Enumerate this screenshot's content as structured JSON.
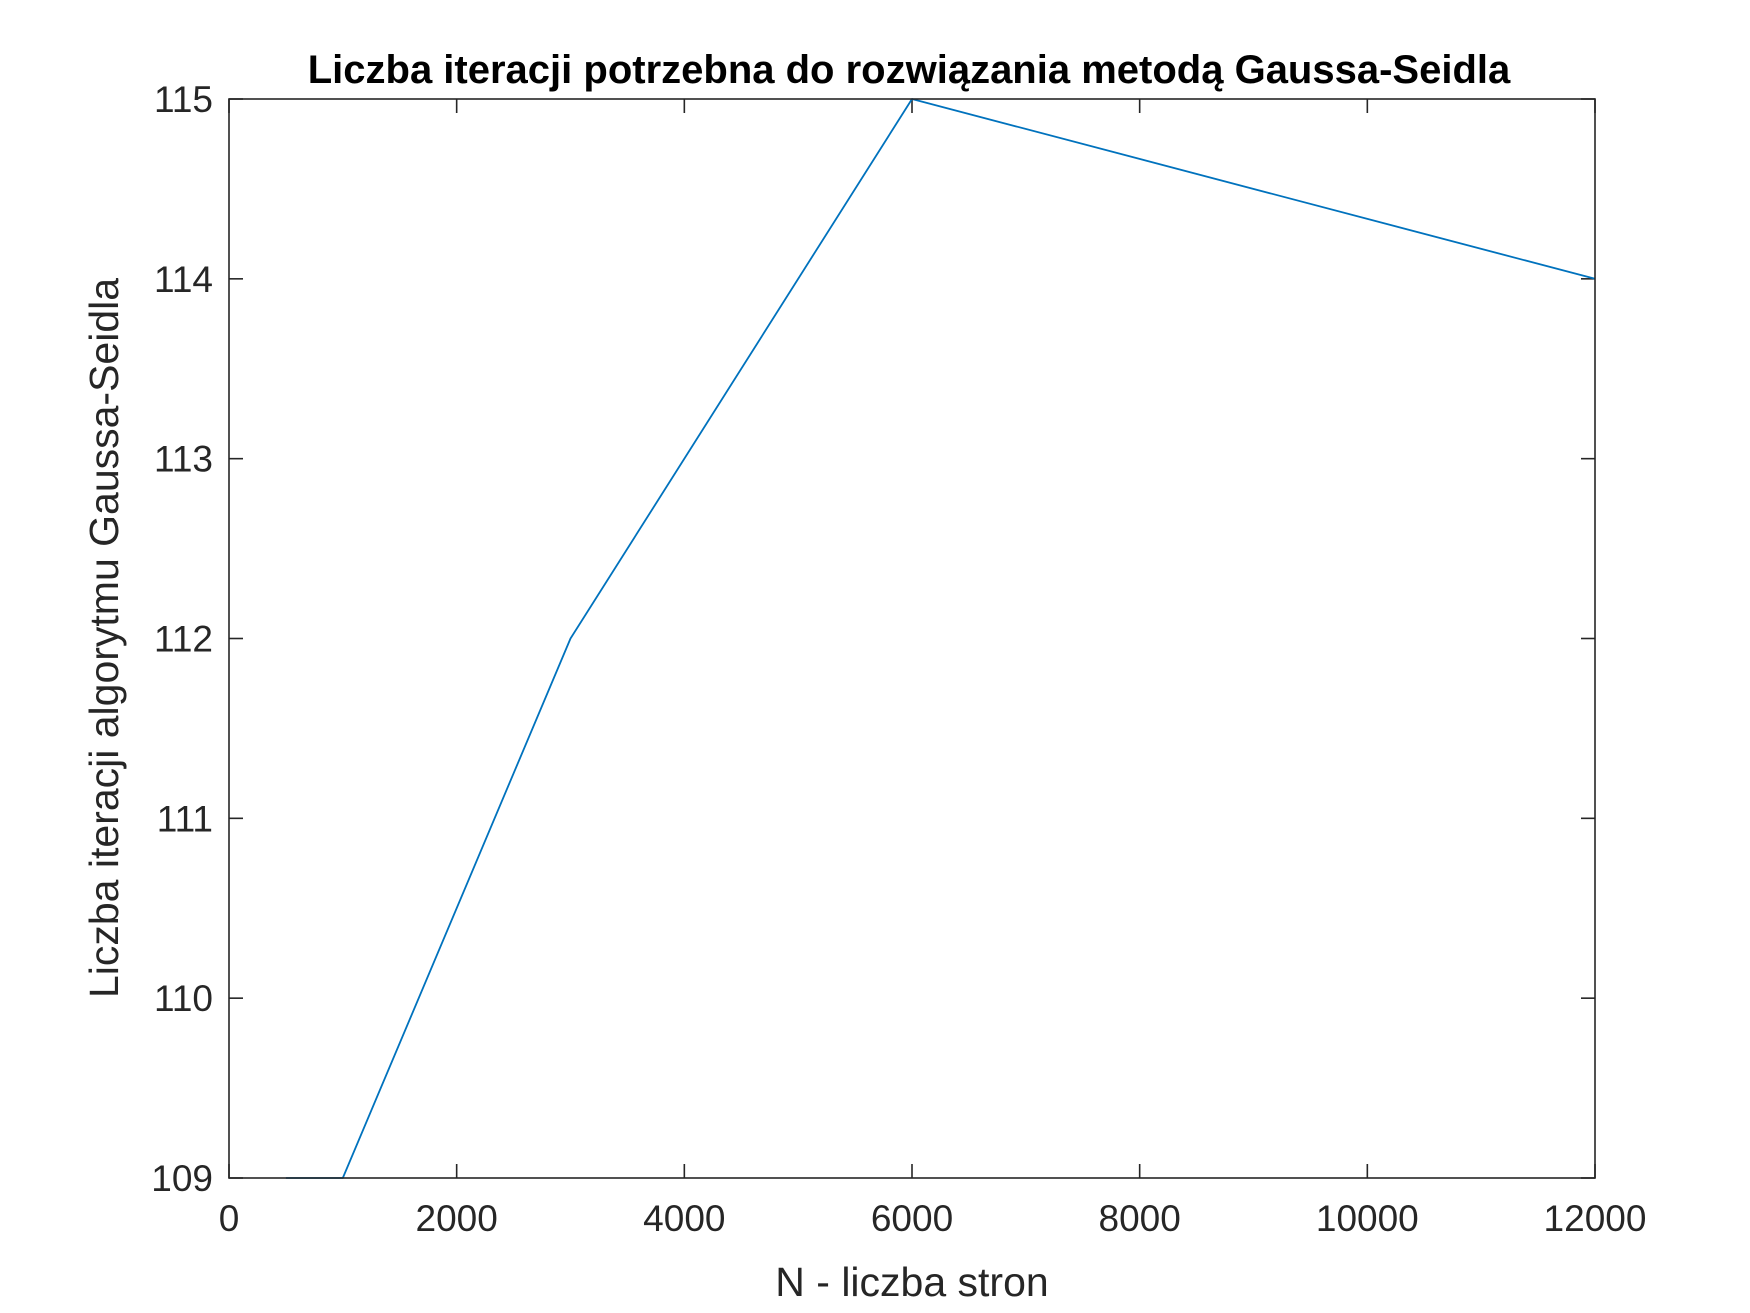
{
  "chart_data": {
    "type": "line",
    "title": "Liczba iteracji potrzebna do rozwiązania metodą Gaussa-Seidla",
    "xlabel": "N - liczba stron",
    "ylabel": "Liczba iteracji algorytmu Gaussa-Seidla",
    "xlim": [
      0,
      12000
    ],
    "ylim": [
      109,
      115
    ],
    "xticks": [
      0,
      2000,
      4000,
      6000,
      8000,
      10000,
      12000
    ],
    "yticks": [
      109,
      110,
      111,
      112,
      113,
      114,
      115
    ],
    "grid": false,
    "legend": false,
    "series": [
      {
        "color": "#0072BD",
        "x": [
          500,
          1000,
          3000,
          6000,
          12000
        ],
        "y": [
          109,
          109,
          112,
          115,
          114
        ]
      }
    ]
  }
}
